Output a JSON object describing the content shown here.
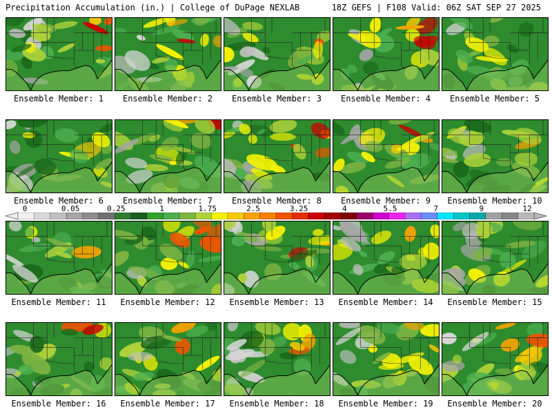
{
  "header": {
    "left": "Precipitation Accumulation (in.) | College of DuPage NEXLAB",
    "right": "18Z GEFS | F108 Valid: 06Z SAT SEP 27 2025"
  },
  "members": [
    {
      "label": "Ensemble Member: 1",
      "seed": 11
    },
    {
      "label": "Ensemble Member: 2",
      "seed": 22
    },
    {
      "label": "Ensemble Member: 3",
      "seed": 33
    },
    {
      "label": "Ensemble Member: 4",
      "seed": 44
    },
    {
      "label": "Ensemble Member: 5",
      "seed": 55
    },
    {
      "label": "Ensemble Member: 6",
      "seed": 66
    },
    {
      "label": "Ensemble Member: 7",
      "seed": 77
    },
    {
      "label": "Ensemble Member: 8",
      "seed": 88
    },
    {
      "label": "Ensemble Member: 9",
      "seed": 99
    },
    {
      "label": "Ensemble Member: 10",
      "seed": 110
    },
    {
      "label": "Ensemble Member: 11",
      "seed": 121
    },
    {
      "label": "Ensemble Member: 12",
      "seed": 132
    },
    {
      "label": "Ensemble Member: 13",
      "seed": 143
    },
    {
      "label": "Ensemble Member: 14",
      "seed": 154
    },
    {
      "label": "Ensemble Member: 15",
      "seed": 165
    },
    {
      "label": "Ensemble Member: 16",
      "seed": 176
    },
    {
      "label": "Ensemble Member: 17",
      "seed": 187
    },
    {
      "label": "Ensemble Member: 18",
      "seed": 198
    },
    {
      "label": "Ensemble Member: 19",
      "seed": 209
    },
    {
      "label": "Ensemble Member: 20",
      "seed": 220
    }
  ],
  "scale": {
    "labels": [
      "0",
      "0.05",
      "0.25",
      "1",
      "1.75",
      "2.5",
      "3.25",
      "4",
      "5.5",
      "7",
      "9",
      "12"
    ],
    "colors": [
      "#f0f0f0",
      "#d8d8d8",
      "#bfbfbf",
      "#a6a6a6",
      "#8c8c8c",
      "#707070",
      "#2e7d32",
      "#1b5e20",
      "#33a02c",
      "#4caf50",
      "#7cb342",
      "#aed23a",
      "#f5f200",
      "#f5c800",
      "#f5a300",
      "#f57f00",
      "#ee5500",
      "#e53000",
      "#cc0000",
      "#a00000",
      "#7f0000",
      "#990066",
      "#cc00cc",
      "#ee22ee",
      "#a86ff0",
      "#6a8cf5",
      "#00e5ff",
      "#00c6c6",
      "#00a8a8",
      "#a0a0a0",
      "#888888",
      "#b8b8b8"
    ]
  }
}
